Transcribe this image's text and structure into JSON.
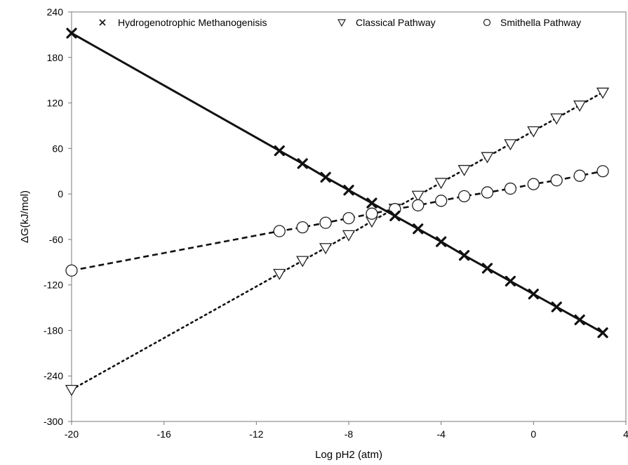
{
  "chart_data": {
    "type": "line",
    "xlabel": "Log pH2 (atm)",
    "ylabel": "ΔG(kJ/mol)",
    "xlim": [
      -20,
      4
    ],
    "ylim": [
      -300,
      240
    ],
    "xticks": [
      -20,
      -16,
      -12,
      -8,
      -4,
      0,
      4
    ],
    "yticks": [
      -300,
      -240,
      -180,
      -120,
      -60,
      0,
      60,
      120,
      180,
      240
    ],
    "grid": "none",
    "legend": "top",
    "series": [
      {
        "name": "Hydrogenotrophic Methanogenisis",
        "marker": "x",
        "line": "solid",
        "x": [
          -20,
          -11,
          -10,
          -9,
          -8,
          -7,
          -6,
          -5,
          -4,
          -3,
          -2,
          -1,
          0,
          1,
          2,
          3
        ],
        "y": [
          212,
          57,
          40,
          22,
          5,
          -12,
          -29,
          -46,
          -63,
          -81,
          -98,
          -115,
          -132,
          -149,
          -166,
          -183
        ]
      },
      {
        "name": "Classical Pathway",
        "marker": "triangle-down",
        "line": "dotted",
        "x": [
          -20,
          -11,
          -10,
          -9,
          -8,
          -7,
          -6,
          -5,
          -4,
          -3,
          -2,
          -1,
          0,
          1,
          2,
          3
        ],
        "y": [
          -258,
          -105,
          -88,
          -71,
          -54,
          -36,
          -19,
          -2,
          15,
          32,
          49,
          66,
          83,
          100,
          117,
          134
        ]
      },
      {
        "name": "Smithella Pathway",
        "marker": "circle",
        "line": "dashed",
        "x": [
          -20,
          -11,
          -10,
          -9,
          -8,
          -7,
          -6,
          -5,
          -4,
          -3,
          -2,
          -1,
          0,
          1,
          2,
          3
        ],
        "y": [
          -101,
          -49,
          -44,
          -38,
          -32,
          -26,
          -20,
          -15,
          -9,
          -3,
          2,
          7,
          13,
          18,
          24,
          30
        ]
      }
    ]
  }
}
